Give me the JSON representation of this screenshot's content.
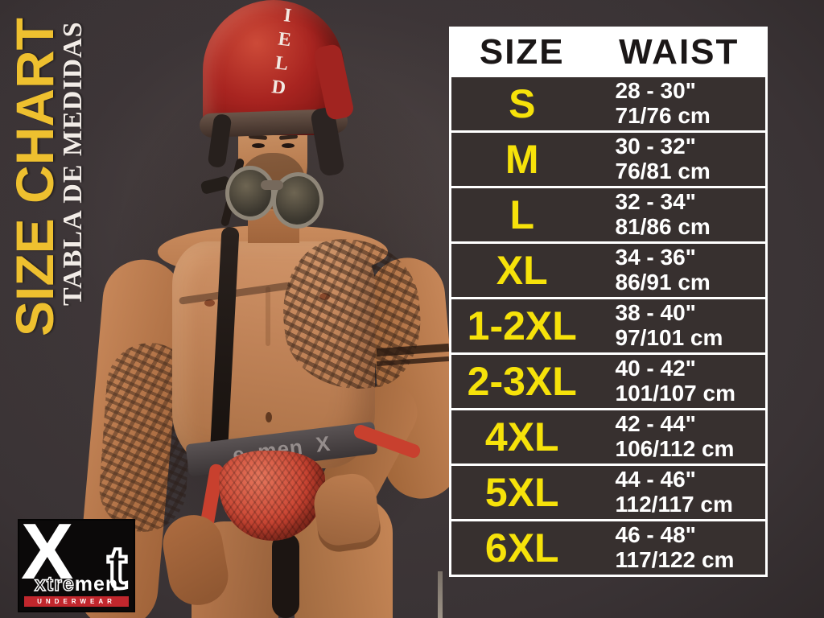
{
  "titles": {
    "main": "SIZE CHART",
    "subtitle": "TABLA DE MEDIDAS"
  },
  "logo": {
    "x": "X",
    "t": "t",
    "name_dark": "xtre",
    "name_light": "men",
    "underwear": "UNDERWEAR"
  },
  "photo": {
    "helmet_text": "IELD",
    "waistband_prefix": "e",
    "waistband_text": "men",
    "waistband_suffix": "X"
  },
  "colors": {
    "title-gold": "#eec02f",
    "accent-yellow": "#f6e20a",
    "row-bg": "#37302f",
    "table-border": "#ffffff",
    "header-text": "#1b1717",
    "logo-red": "#c1272d",
    "helmet-red": "#a32420",
    "jock-red": "#c8402e",
    "backdrop": "#3e3639"
  },
  "chart_data": {
    "type": "table",
    "title": "SIZE CHART",
    "subtitle": "TABLA DE MEDIDAS",
    "columns": [
      "SIZE",
      "WAIST"
    ],
    "rows": [
      {
        "size": "S",
        "waist_in": "28 - 30\"",
        "waist_cm": "71/76 cm"
      },
      {
        "size": "M",
        "waist_in": "30 - 32\"",
        "waist_cm": "76/81 cm"
      },
      {
        "size": "L",
        "waist_in": "32 - 34\"",
        "waist_cm": "81/86 cm"
      },
      {
        "size": "XL",
        "waist_in": "34 - 36\"",
        "waist_cm": "86/91 cm"
      },
      {
        "size": "1-2XL",
        "waist_in": "38 - 40\"",
        "waist_cm": "97/101 cm"
      },
      {
        "size": "2-3XL",
        "waist_in": "40 - 42\"",
        "waist_cm": "101/107 cm"
      },
      {
        "size": "4XL",
        "waist_in": "42 - 44\"",
        "waist_cm": "106/112 cm"
      },
      {
        "size": "5XL",
        "waist_in": "44 - 46\"",
        "waist_cm": "112/117 cm"
      },
      {
        "size": "6XL",
        "waist_in": "46 - 48\"",
        "waist_cm": "117/122 cm"
      }
    ]
  }
}
